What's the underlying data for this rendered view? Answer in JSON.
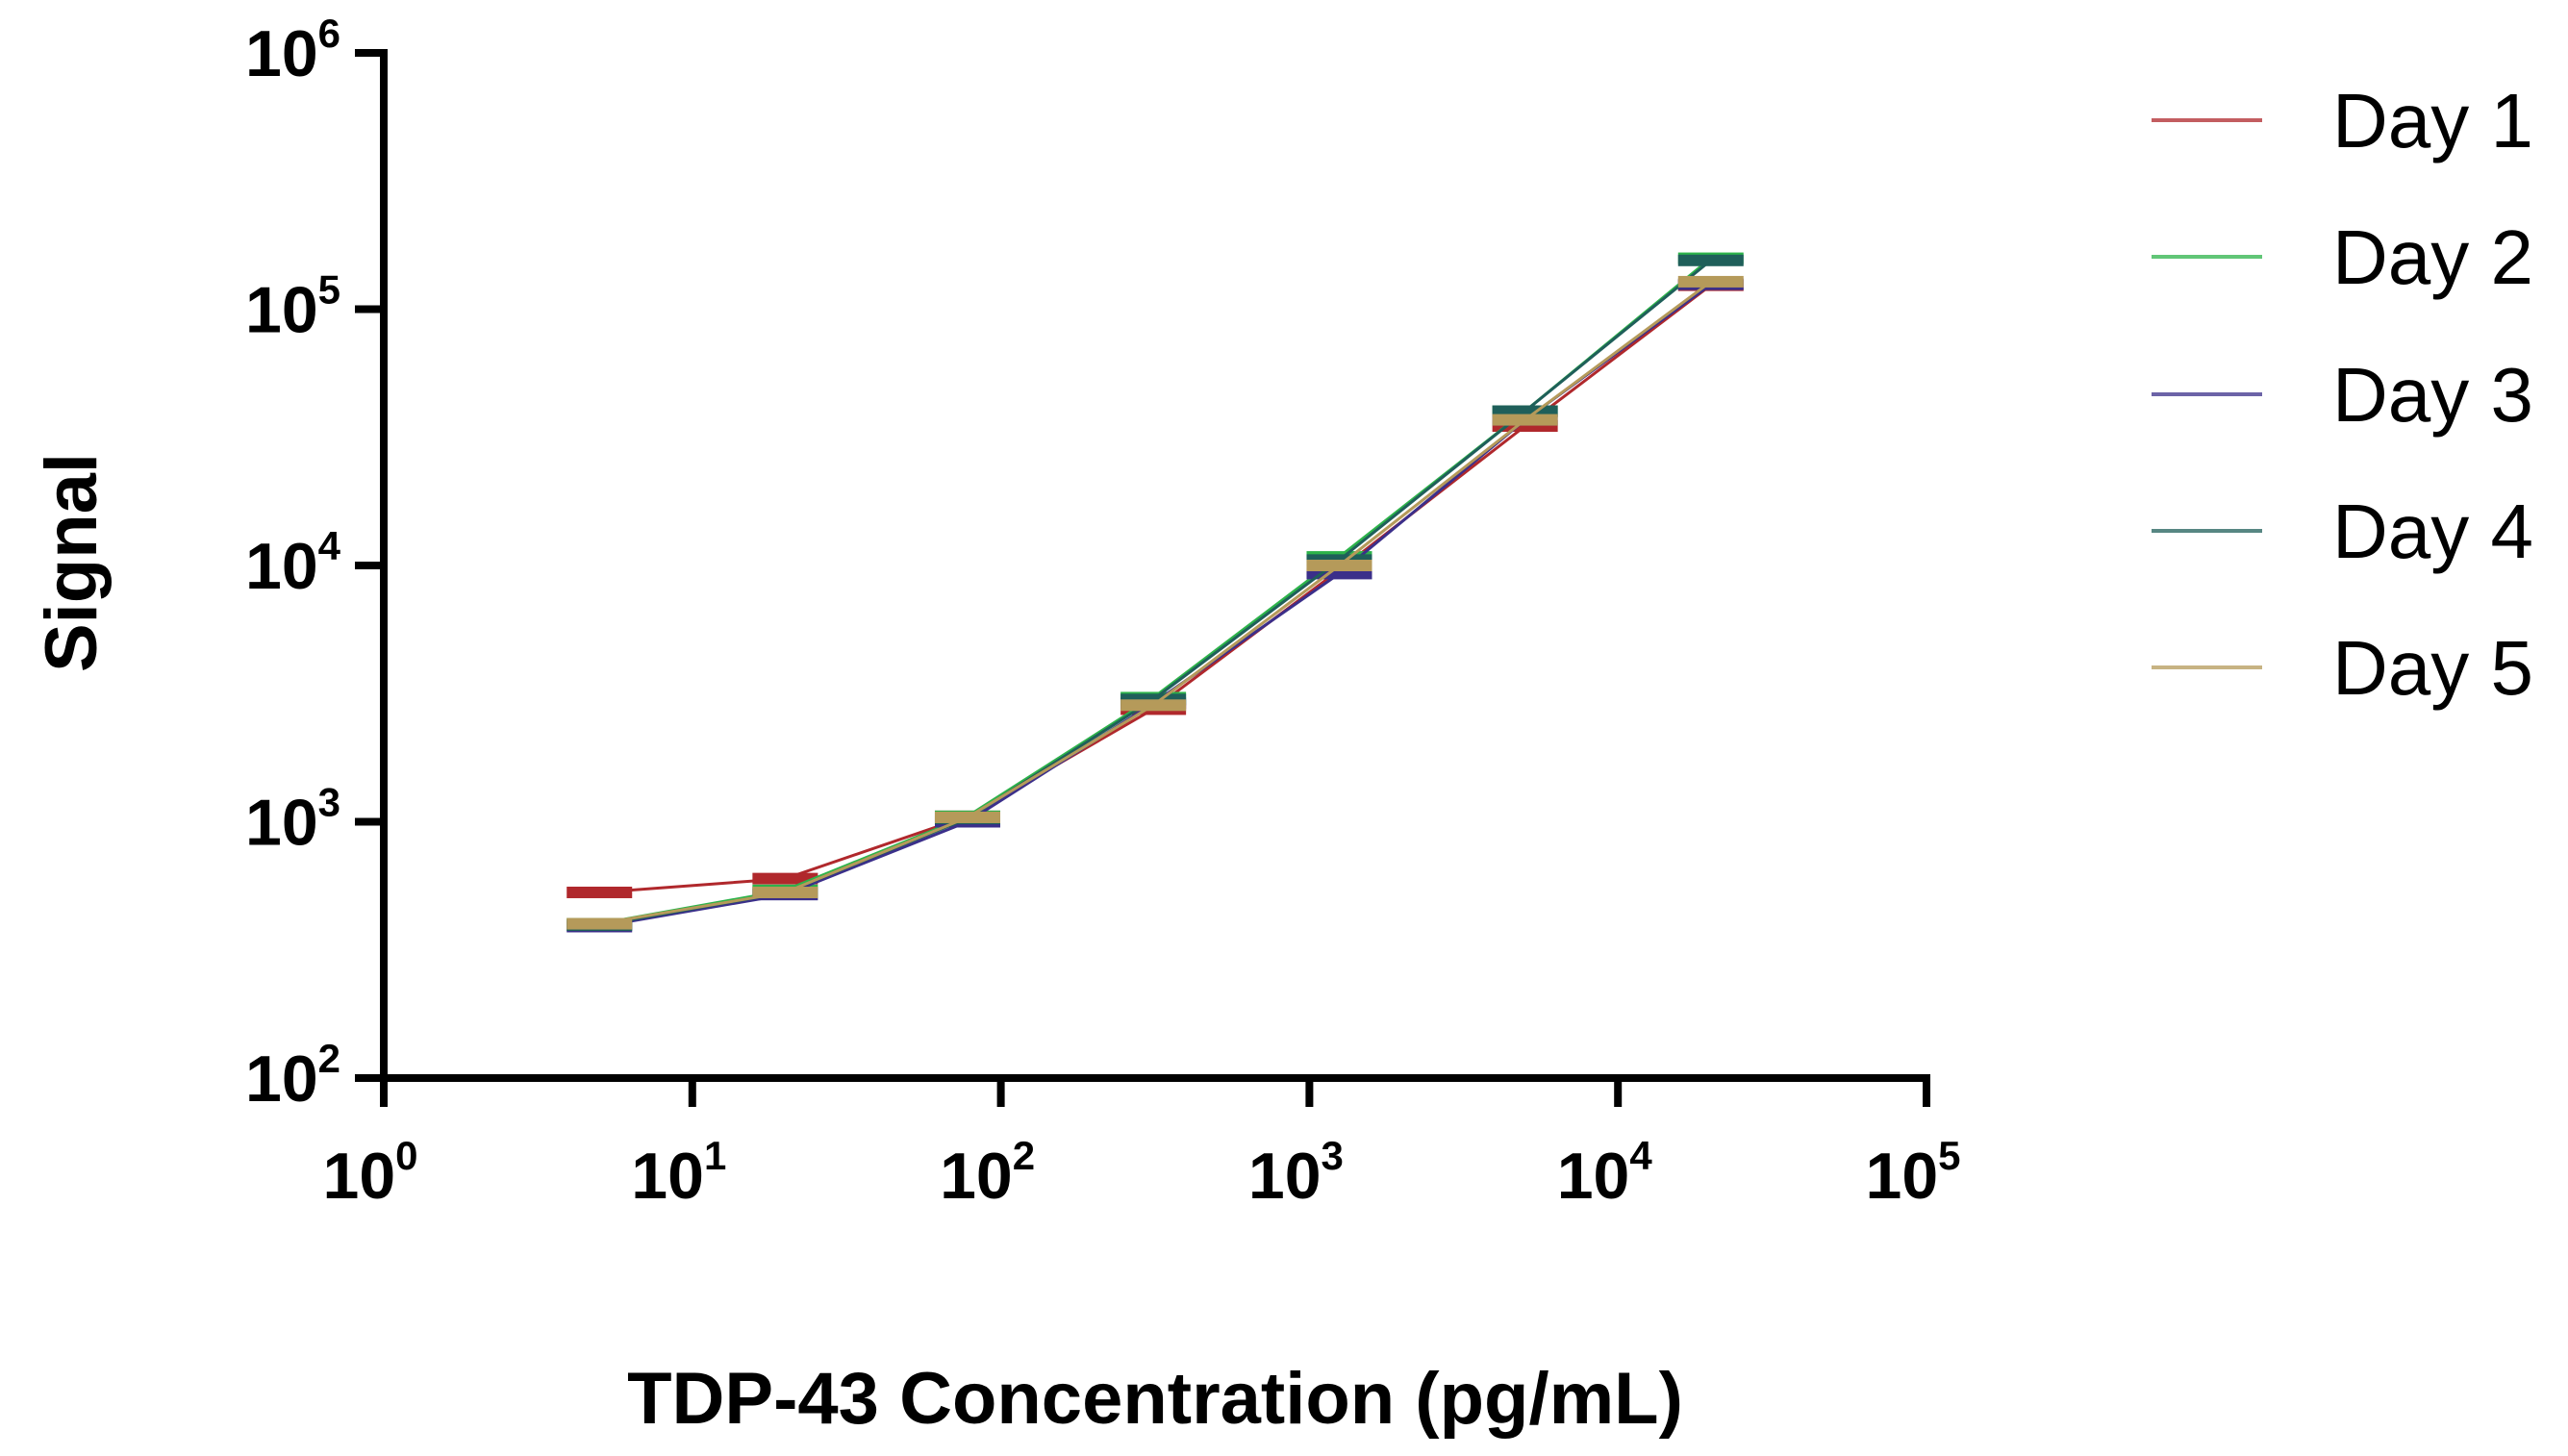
{
  "chart_data": {
    "type": "line",
    "title": "",
    "xlabel": "TDP-43 Concentration (pg/mL)",
    "ylabel": "Signal",
    "xscale": "log",
    "yscale": "log",
    "xlim": [
      1,
      100000
    ],
    "ylim": [
      100,
      1000000
    ],
    "x_ticks": [
      {
        "base": "10",
        "exp": "0"
      },
      {
        "base": "10",
        "exp": "1"
      },
      {
        "base": "10",
        "exp": "2"
      },
      {
        "base": "10",
        "exp": "3"
      },
      {
        "base": "10",
        "exp": "4"
      },
      {
        "base": "10",
        "exp": "5"
      }
    ],
    "y_ticks": [
      {
        "base": "10",
        "exp": "2"
      },
      {
        "base": "10",
        "exp": "3"
      },
      {
        "base": "10",
        "exp": "4"
      },
      {
        "base": "10",
        "exp": "5"
      },
      {
        "base": "10",
        "exp": "6"
      }
    ],
    "grid": false,
    "legend_placement": "right",
    "x": [
      5,
      20,
      78,
      312,
      1250,
      5000,
      20000
    ],
    "series": [
      {
        "name": "Day 1",
        "color": "#b0282c",
        "values": [
          530,
          600,
          1050,
          2750,
          9600,
          35000,
          124000
        ]
      },
      {
        "name": "Day 2",
        "color": "#2db34a",
        "values": [
          400,
          540,
          1050,
          3050,
          10800,
          40000,
          158000
        ]
      },
      {
        "name": "Day 3",
        "color": "#3b2f8a",
        "values": [
          390,
          520,
          1000,
          2900,
          9300,
          37000,
          125000
        ]
      },
      {
        "name": "Day 4",
        "color": "#1f5f5a",
        "values": [
          395,
          530,
          1030,
          3000,
          10500,
          40000,
          155000
        ]
      },
      {
        "name": "Day 5",
        "color": "#b59a5a",
        "values": [
          400,
          530,
          1040,
          2850,
          10000,
          37000,
          128000
        ]
      }
    ]
  }
}
